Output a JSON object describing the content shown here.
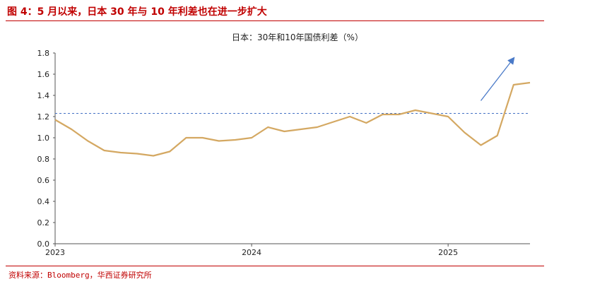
{
  "figure": {
    "title": "图 4：5 月以来，日本 30 年与 10 年利差也在进一步扩大",
    "source": "资料来源：Bloomberg，华西证券研究所"
  },
  "colors": {
    "accent": "#c00000",
    "series": "#d4a862",
    "reference_line": "#4472c4",
    "arrow": "#4a7ac8"
  },
  "chart_data": {
    "type": "line",
    "title": "日本：30年和10年国债利差（%）",
    "xlabel": "",
    "ylabel": "",
    "ylim": [
      0,
      1.8
    ],
    "yticks": [
      "0.0",
      "0.2",
      "0.4",
      "0.6",
      "0.8",
      "1.0",
      "1.2",
      "1.4",
      "1.6",
      "1.8"
    ],
    "xticks": [
      "2023",
      "2024",
      "2025"
    ],
    "xlim": [
      "2023-01",
      "2025-06"
    ],
    "reference_line": 1.23,
    "grid": false,
    "legend": "none",
    "annotation": "upward arrow near recent rise",
    "series": [
      {
        "x": [
          "2023-01",
          "2023-02",
          "2023-03",
          "2023-04",
          "2023-05",
          "2023-06",
          "2023-07",
          "2023-08",
          "2023-09",
          "2023-10",
          "2023-11",
          "2023-12",
          "2024-01",
          "2024-02",
          "2024-03",
          "2024-04",
          "2024-05",
          "2024-06",
          "2024-07",
          "2024-08",
          "2024-09",
          "2024-10",
          "2024-11",
          "2024-12",
          "2025-01",
          "2025-02",
          "2025-03",
          "2025-04",
          "2025-05",
          "2025-06"
        ],
        "values": [
          1.17,
          1.08,
          0.97,
          0.88,
          0.86,
          0.85,
          0.83,
          0.87,
          1.0,
          1.0,
          0.97,
          0.98,
          1.0,
          1.1,
          1.06,
          1.08,
          1.1,
          1.15,
          1.2,
          1.14,
          1.22,
          1.22,
          1.26,
          1.23,
          1.2,
          1.05,
          0.93,
          1.02,
          1.5,
          1.52
        ]
      }
    ]
  }
}
